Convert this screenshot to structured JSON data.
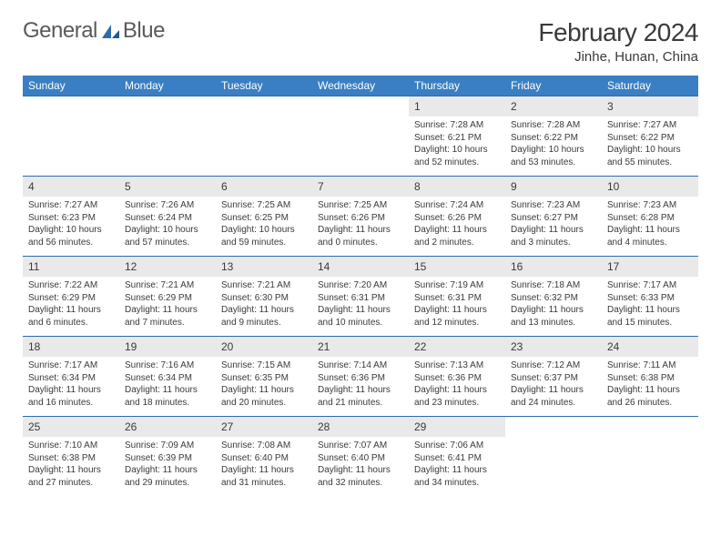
{
  "brand": {
    "word1": "General",
    "word2": "Blue"
  },
  "title": "February 2024",
  "location": "Jinhe, Hunan, China",
  "colors": {
    "header_bg": "#3a7fc4",
    "header_text": "#ffffff",
    "daynum_bg": "#e9e9e9",
    "rule": "#2e6ca8",
    "text": "#3a3a3a",
    "brand_gray": "#5a5a5a",
    "brand_blue": "#2e6ca8"
  },
  "typography": {
    "title_size": 28,
    "location_size": 15,
    "dayhead_size": 12,
    "daynum_size": 12,
    "body_size": 10
  },
  "day_headers": [
    "Sunday",
    "Monday",
    "Tuesday",
    "Wednesday",
    "Thursday",
    "Friday",
    "Saturday"
  ],
  "weeks": [
    [
      {
        "empty": true
      },
      {
        "empty": true
      },
      {
        "empty": true
      },
      {
        "empty": true
      },
      {
        "n": "1",
        "sr": "Sunrise: 7:28 AM",
        "ss": "Sunset: 6:21 PM",
        "d1": "Daylight: 10 hours",
        "d2": "and 52 minutes."
      },
      {
        "n": "2",
        "sr": "Sunrise: 7:28 AM",
        "ss": "Sunset: 6:22 PM",
        "d1": "Daylight: 10 hours",
        "d2": "and 53 minutes."
      },
      {
        "n": "3",
        "sr": "Sunrise: 7:27 AM",
        "ss": "Sunset: 6:22 PM",
        "d1": "Daylight: 10 hours",
        "d2": "and 55 minutes."
      }
    ],
    [
      {
        "n": "4",
        "sr": "Sunrise: 7:27 AM",
        "ss": "Sunset: 6:23 PM",
        "d1": "Daylight: 10 hours",
        "d2": "and 56 minutes."
      },
      {
        "n": "5",
        "sr": "Sunrise: 7:26 AM",
        "ss": "Sunset: 6:24 PM",
        "d1": "Daylight: 10 hours",
        "d2": "and 57 minutes."
      },
      {
        "n": "6",
        "sr": "Sunrise: 7:25 AM",
        "ss": "Sunset: 6:25 PM",
        "d1": "Daylight: 10 hours",
        "d2": "and 59 minutes."
      },
      {
        "n": "7",
        "sr": "Sunrise: 7:25 AM",
        "ss": "Sunset: 6:26 PM",
        "d1": "Daylight: 11 hours",
        "d2": "and 0 minutes."
      },
      {
        "n": "8",
        "sr": "Sunrise: 7:24 AM",
        "ss": "Sunset: 6:26 PM",
        "d1": "Daylight: 11 hours",
        "d2": "and 2 minutes."
      },
      {
        "n": "9",
        "sr": "Sunrise: 7:23 AM",
        "ss": "Sunset: 6:27 PM",
        "d1": "Daylight: 11 hours",
        "d2": "and 3 minutes."
      },
      {
        "n": "10",
        "sr": "Sunrise: 7:23 AM",
        "ss": "Sunset: 6:28 PM",
        "d1": "Daylight: 11 hours",
        "d2": "and 4 minutes."
      }
    ],
    [
      {
        "n": "11",
        "sr": "Sunrise: 7:22 AM",
        "ss": "Sunset: 6:29 PM",
        "d1": "Daylight: 11 hours",
        "d2": "and 6 minutes."
      },
      {
        "n": "12",
        "sr": "Sunrise: 7:21 AM",
        "ss": "Sunset: 6:29 PM",
        "d1": "Daylight: 11 hours",
        "d2": "and 7 minutes."
      },
      {
        "n": "13",
        "sr": "Sunrise: 7:21 AM",
        "ss": "Sunset: 6:30 PM",
        "d1": "Daylight: 11 hours",
        "d2": "and 9 minutes."
      },
      {
        "n": "14",
        "sr": "Sunrise: 7:20 AM",
        "ss": "Sunset: 6:31 PM",
        "d1": "Daylight: 11 hours",
        "d2": "and 10 minutes."
      },
      {
        "n": "15",
        "sr": "Sunrise: 7:19 AM",
        "ss": "Sunset: 6:31 PM",
        "d1": "Daylight: 11 hours",
        "d2": "and 12 minutes."
      },
      {
        "n": "16",
        "sr": "Sunrise: 7:18 AM",
        "ss": "Sunset: 6:32 PM",
        "d1": "Daylight: 11 hours",
        "d2": "and 13 minutes."
      },
      {
        "n": "17",
        "sr": "Sunrise: 7:17 AM",
        "ss": "Sunset: 6:33 PM",
        "d1": "Daylight: 11 hours",
        "d2": "and 15 minutes."
      }
    ],
    [
      {
        "n": "18",
        "sr": "Sunrise: 7:17 AM",
        "ss": "Sunset: 6:34 PM",
        "d1": "Daylight: 11 hours",
        "d2": "and 16 minutes."
      },
      {
        "n": "19",
        "sr": "Sunrise: 7:16 AM",
        "ss": "Sunset: 6:34 PM",
        "d1": "Daylight: 11 hours",
        "d2": "and 18 minutes."
      },
      {
        "n": "20",
        "sr": "Sunrise: 7:15 AM",
        "ss": "Sunset: 6:35 PM",
        "d1": "Daylight: 11 hours",
        "d2": "and 20 minutes."
      },
      {
        "n": "21",
        "sr": "Sunrise: 7:14 AM",
        "ss": "Sunset: 6:36 PM",
        "d1": "Daylight: 11 hours",
        "d2": "and 21 minutes."
      },
      {
        "n": "22",
        "sr": "Sunrise: 7:13 AM",
        "ss": "Sunset: 6:36 PM",
        "d1": "Daylight: 11 hours",
        "d2": "and 23 minutes."
      },
      {
        "n": "23",
        "sr": "Sunrise: 7:12 AM",
        "ss": "Sunset: 6:37 PM",
        "d1": "Daylight: 11 hours",
        "d2": "and 24 minutes."
      },
      {
        "n": "24",
        "sr": "Sunrise: 7:11 AM",
        "ss": "Sunset: 6:38 PM",
        "d1": "Daylight: 11 hours",
        "d2": "and 26 minutes."
      }
    ],
    [
      {
        "n": "25",
        "sr": "Sunrise: 7:10 AM",
        "ss": "Sunset: 6:38 PM",
        "d1": "Daylight: 11 hours",
        "d2": "and 27 minutes."
      },
      {
        "n": "26",
        "sr": "Sunrise: 7:09 AM",
        "ss": "Sunset: 6:39 PM",
        "d1": "Daylight: 11 hours",
        "d2": "and 29 minutes."
      },
      {
        "n": "27",
        "sr": "Sunrise: 7:08 AM",
        "ss": "Sunset: 6:40 PM",
        "d1": "Daylight: 11 hours",
        "d2": "and 31 minutes."
      },
      {
        "n": "28",
        "sr": "Sunrise: 7:07 AM",
        "ss": "Sunset: 6:40 PM",
        "d1": "Daylight: 11 hours",
        "d2": "and 32 minutes."
      },
      {
        "n": "29",
        "sr": "Sunrise: 7:06 AM",
        "ss": "Sunset: 6:41 PM",
        "d1": "Daylight: 11 hours",
        "d2": "and 34 minutes."
      },
      {
        "empty": true
      },
      {
        "empty": true
      }
    ]
  ]
}
